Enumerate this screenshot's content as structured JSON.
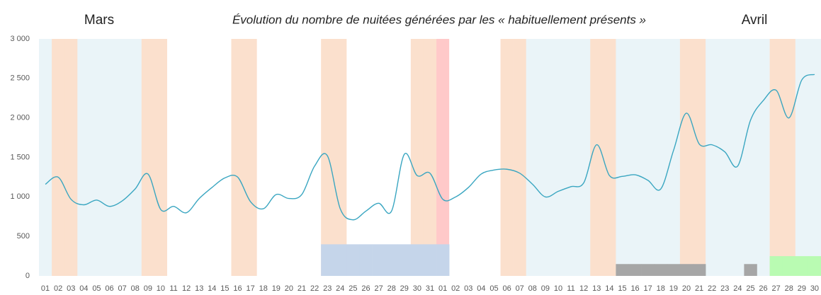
{
  "chart_data": {
    "type": "line",
    "title": "Évolution du nombre de nuitées générées par les « habituellement présents »",
    "annotations": [
      "Mars",
      "Avril"
    ],
    "categories": [
      "01",
      "02",
      "03",
      "04",
      "05",
      "06",
      "07",
      "08",
      "09",
      "10",
      "11",
      "12",
      "13",
      "14",
      "15",
      "16",
      "17",
      "18",
      "19",
      "20",
      "21",
      "22",
      "23",
      "24",
      "25",
      "26",
      "27",
      "28",
      "29",
      "30",
      "31",
      "01",
      "02",
      "03",
      "04",
      "05",
      "06",
      "07",
      "08",
      "09",
      "10",
      "11",
      "12",
      "13",
      "14",
      "15",
      "16",
      "17",
      "18",
      "19",
      "20",
      "21",
      "22",
      "23",
      "24",
      "25",
      "26",
      "27",
      "28",
      "29",
      "30"
    ],
    "background": [
      "#eaf4f8",
      "#fbe0cd",
      "#fbe0cd",
      "#eaf4f8",
      "#eaf4f8",
      "#eaf4f8",
      "#eaf4f8",
      "#eaf4f8",
      "#fbe0cd",
      "#fbe0cd",
      "#ffffff",
      "#ffffff",
      "#ffffff",
      "#ffffff",
      "#ffffff",
      "#fbe0cd",
      "#fbe0cd",
      "#ffffff",
      "#ffffff",
      "#ffffff",
      "#ffffff",
      "#ffffff",
      "#fbe0cd",
      "#fbe0cd",
      "#ffffff",
      "#ffffff",
      "#ffffff",
      "#ffffff",
      "#ffffff",
      "#fbe0cd",
      "#fbe0cd",
      "#ffc9c9",
      "#ffffff",
      "#ffffff",
      "#ffffff",
      "#ffffff",
      "#fbe0cd",
      "#fbe0cd",
      "#eaf4f8",
      "#eaf4f8",
      "#eaf4f8",
      "#eaf4f8",
      "#eaf4f8",
      "#fbe0cd",
      "#fbe0cd",
      "#eaf4f8",
      "#eaf4f8",
      "#eaf4f8",
      "#eaf4f8",
      "#eaf4f8",
      "#fbe0cd",
      "#fbe0cd",
      "#eaf4f8",
      "#eaf4f8",
      "#eaf4f8",
      "#eaf4f8",
      "#eaf4f8",
      "#fbe0cd",
      "#fbe0cd",
      "#eaf4f8",
      "#eaf4f8"
    ],
    "series": [
      {
        "type": "line",
        "color": "#3aa6c1",
        "values": [
          1160,
          1250,
          970,
          900,
          960,
          880,
          950,
          1100,
          1290,
          840,
          880,
          800,
          980,
          1120,
          1240,
          1250,
          940,
          850,
          1030,
          980,
          1030,
          1390,
          1520,
          850,
          710,
          820,
          920,
          820,
          1540,
          1270,
          1300,
          970,
          1000,
          1120,
          1290,
          1340,
          1350,
          1300,
          1160,
          1000,
          1070,
          1130,
          1180,
          1660,
          1270,
          1260,
          1280,
          1210,
          1100,
          1590,
          2060,
          1670,
          1660,
          1570,
          1390,
          1970,
          2220,
          2350,
          2000,
          2480,
          2550
        ]
      },
      {
        "type": "bar",
        "color": "#c5d5ea",
        "values": [
          null,
          null,
          null,
          null,
          null,
          null,
          null,
          null,
          null,
          null,
          null,
          null,
          null,
          null,
          null,
          null,
          null,
          null,
          null,
          null,
          null,
          null,
          400,
          400,
          400,
          400,
          400,
          400,
          400,
          400,
          400,
          400,
          null,
          null,
          null,
          null,
          null,
          null,
          null,
          null,
          null,
          null,
          null,
          null,
          null,
          null,
          null,
          null,
          null,
          null,
          null,
          null,
          null,
          null,
          null,
          null,
          null,
          null,
          null,
          null,
          null
        ]
      },
      {
        "type": "bar",
        "color": "#a6a6a6",
        "values": [
          null,
          null,
          null,
          null,
          null,
          null,
          null,
          null,
          null,
          null,
          null,
          null,
          null,
          null,
          null,
          null,
          null,
          null,
          null,
          null,
          null,
          null,
          null,
          null,
          null,
          null,
          null,
          null,
          null,
          null,
          null,
          null,
          null,
          null,
          null,
          null,
          null,
          null,
          null,
          null,
          null,
          null,
          null,
          null,
          null,
          150,
          150,
          150,
          150,
          150,
          150,
          150,
          null,
          null,
          null,
          150,
          null,
          null,
          null,
          null,
          null
        ]
      },
      {
        "type": "bar",
        "color": "#b9fbb2",
        "values": [
          null,
          null,
          null,
          null,
          null,
          null,
          null,
          null,
          null,
          null,
          null,
          null,
          null,
          null,
          null,
          null,
          null,
          null,
          null,
          null,
          null,
          null,
          null,
          null,
          null,
          null,
          null,
          null,
          null,
          null,
          null,
          null,
          null,
          null,
          null,
          null,
          null,
          null,
          null,
          null,
          null,
          null,
          null,
          null,
          null,
          null,
          null,
          null,
          null,
          null,
          null,
          null,
          null,
          null,
          null,
          null,
          null,
          250,
          250,
          250,
          250
        ]
      }
    ],
    "ylim": [
      0,
      3000
    ],
    "yticks": [
      0,
      500,
      {
        "value": 1000,
        "label": "1 000"
      },
      {
        "value": 1500,
        "label": "1 500"
      },
      {
        "value": 2000,
        "label": "2 000"
      },
      {
        "value": 2500,
        "label": "2 500"
      },
      {
        "value": 3000,
        "label": "3 000"
      }
    ],
    "grid": false
  }
}
